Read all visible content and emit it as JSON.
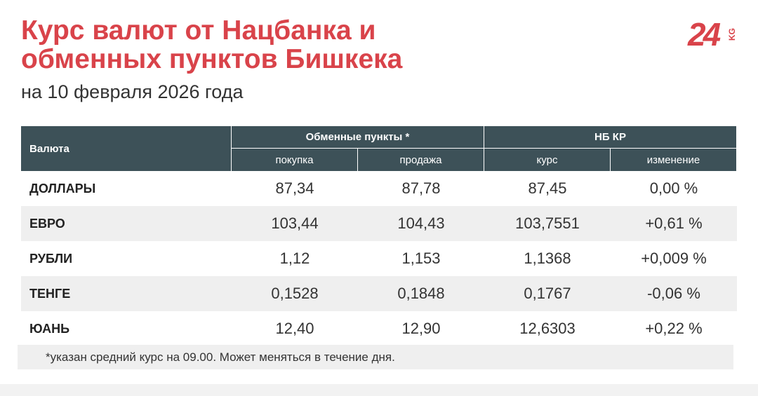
{
  "logo": {
    "main": "24",
    "sub": "KG"
  },
  "header": {
    "title": [
      "Курс валют от Нацбанка и",
      "обменных пунктов Бишкека"
    ],
    "subtitle": "на 10 февраля 2026 года"
  },
  "table": {
    "columns": {
      "currency": "Валюта",
      "groups": [
        {
          "label": "Обменные пункты *",
          "sub": [
            "покупка",
            "продажа"
          ]
        },
        {
          "label": "НБ КР",
          "sub": [
            "курс",
            "изменение"
          ]
        }
      ]
    },
    "rows": [
      [
        "ДОЛЛАРЫ",
        "87,34",
        "87,78",
        "87,45",
        "0,00 %"
      ],
      [
        "ЕВРО",
        "103,44",
        "104,43",
        "103,7551",
        "+0,61 %"
      ],
      [
        "РУБЛИ",
        "1,12",
        "1,153",
        "1,1368",
        "+0,009 %"
      ],
      [
        "ТЕНГЕ",
        "0,1528",
        "0,1848",
        "0,1767",
        "-0,06 %"
      ],
      [
        "ЮАНЬ",
        "12,40",
        "12,90",
        "12,6303",
        "+0,22 %"
      ]
    ]
  },
  "footnote": "*указан средний курс на 09.00. Может меняться в течение дня."
}
